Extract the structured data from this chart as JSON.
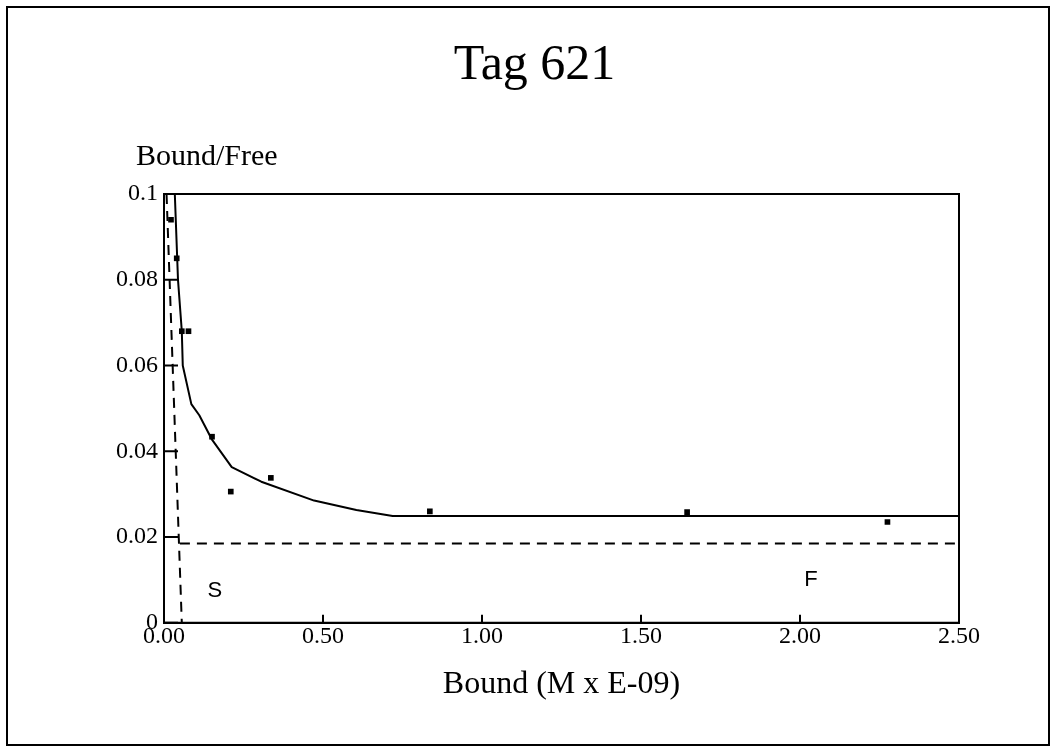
{
  "chart_data": {
    "type": "scatter",
    "title": "Tag 621",
    "xlabel": "Bound (M x E-09)",
    "ylabel": "Bound/Free",
    "xlim": [
      0,
      2.5
    ],
    "xticks": [
      {
        "value": 0,
        "label": "0.00"
      },
      {
        "value": 0.5,
        "label": "0.50"
      },
      {
        "value": 1,
        "label": "1.00"
      },
      {
        "value": 1.5,
        "label": "1.50"
      },
      {
        "value": 2,
        "label": "2.00"
      },
      {
        "value": 2.5,
        "label": "2.50"
      }
    ],
    "ylim": [
      0,
      0.1
    ],
    "yticks": [
      0,
      0.02,
      0.04,
      0.06,
      0.08,
      0.1
    ],
    "grid": false,
    "legend": false,
    "series": [
      {
        "type": "scatter",
        "marker": "square",
        "color": "#000000",
        "x": [
          0.022,
          0.04,
          0.056,
          0.077,
          0.151,
          0.21,
          0.336,
          0.836,
          1.645,
          2.275
        ],
        "values": [
          0.094,
          0.085,
          0.068,
          0.068,
          0.0434,
          0.0306,
          0.0338,
          0.026,
          0.0258,
          0.0235
        ]
      },
      {
        "type": "line",
        "marker": "none",
        "line_style": "solid",
        "color": "#000000",
        "x": [
          0.034,
          0.044,
          0.056,
          0.059,
          0.086,
          0.111,
          0.151,
          0.213,
          0.306,
          0.472,
          0.605,
          0.719,
          0.8,
          1.5,
          2.5
        ],
        "values": [
          0.1,
          0.08,
          0.068,
          0.06,
          0.051,
          0.0484,
          0.0427,
          0.0363,
          0.0329,
          0.0285,
          0.0263,
          0.0249,
          0.0249,
          0.0249,
          0.0249
        ]
      },
      {
        "type": "line",
        "marker": "none",
        "line_style": "dashed",
        "color": "#000000",
        "x": [
          0.008,
          0.056
        ],
        "values": [
          0.1,
          0
        ]
      },
      {
        "type": "line",
        "marker": "none",
        "line_style": "dashed",
        "color": "#000000",
        "x": [
          0.05,
          2.5
        ],
        "values": [
          0.0185,
          0.0185
        ]
      }
    ],
    "annotations": [
      "S",
      "F"
    ]
  }
}
